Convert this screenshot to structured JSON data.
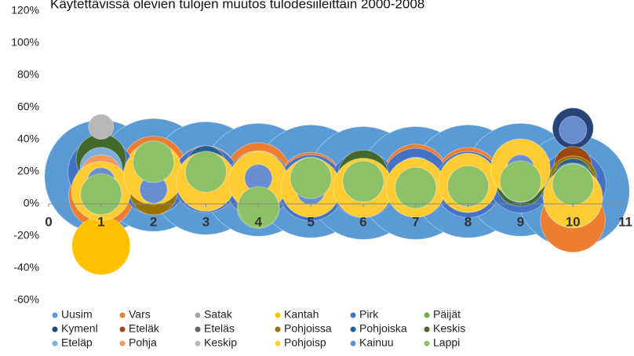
{
  "chart_data": {
    "type": "bubble",
    "title": "Käytettävissä olevien tulojen muutos tulodesiileittäin 2000-2008",
    "x": [
      1,
      2,
      3,
      4,
      5,
      6,
      7,
      8,
      9,
      10
    ],
    "xlim": [
      0,
      11
    ],
    "xticks": [
      0,
      1,
      2,
      3,
      4,
      5,
      6,
      7,
      8,
      9,
      10,
      11
    ],
    "ylim": [
      -60,
      120
    ],
    "yticks": [
      {
        "value": -60,
        "label": "-60%"
      },
      {
        "value": -40,
        "label": "-40%"
      },
      {
        "value": -20,
        "label": "-20%"
      },
      {
        "value": 0,
        "label": "0%"
      },
      {
        "value": 20,
        "label": "20%"
      },
      {
        "value": 40,
        "label": "40%"
      },
      {
        "value": 60,
        "label": "60%"
      },
      {
        "value": 80,
        "label": "80%"
      },
      {
        "value": 100,
        "label": "100%"
      },
      {
        "value": 120,
        "label": "120%"
      }
    ],
    "grid": false,
    "legend": "bottom",
    "series": [
      {
        "name": "Uusim",
        "color": "#5b9bd5",
        "values": [
          17,
          18,
          16,
          15,
          14,
          13,
          13,
          14,
          15,
          8
        ],
        "sizes": [
          1400,
          1400,
          1400,
          1400,
          1400,
          1400,
          1400,
          1400,
          1400,
          1400
        ]
      },
      {
        "name": "Vars",
        "color": "#ed7d31",
        "values": [
          5,
          22,
          16,
          18,
          12,
          12,
          17,
          15,
          18,
          -10
        ],
        "sizes": [
          460,
          460,
          460,
          460,
          460,
          460,
          460,
          460,
          460,
          460
        ]
      },
      {
        "name": "Satak",
        "color": "#a5a5a5",
        "values": [
          10,
          18,
          14,
          15,
          12,
          13,
          12,
          13,
          15,
          20
        ],
        "sizes": [
          225,
          225,
          225,
          225,
          225,
          225,
          225,
          225,
          225,
          225
        ]
      },
      {
        "name": "Kantah",
        "color": "#ffc000",
        "values": [
          -26,
          20,
          14,
          15,
          10,
          10,
          11,
          14,
          22,
          3
        ],
        "sizes": [
          370,
          370,
          370,
          370,
          370,
          370,
          370,
          370,
          370,
          370
        ]
      },
      {
        "name": "Pirk",
        "color": "#4472c4",
        "values": [
          20,
          14,
          15,
          12,
          10,
          12,
          14,
          12,
          15,
          12
        ],
        "sizes": [
          480,
          480,
          480,
          480,
          480,
          480,
          480,
          480,
          480,
          480
        ]
      },
      {
        "name": "Päijät",
        "color": "#70ad47",
        "values": [
          30,
          26,
          20,
          -2,
          16,
          15,
          10,
          12,
          14,
          11
        ],
        "sizes": [
          200,
          200,
          200,
          200,
          200,
          200,
          200,
          200,
          200,
          200
        ]
      },
      {
        "name": "Kymenl",
        "color": "#264478",
        "values": [
          25,
          18,
          22,
          14,
          12,
          14,
          12,
          13,
          14,
          47
        ],
        "sizes": [
          183,
          183,
          183,
          183,
          183,
          183,
          183,
          183,
          183,
          183
        ]
      },
      {
        "name": "Eteläk",
        "color": "#9e480e",
        "values": [
          12,
          10,
          14,
          14,
          10,
          16,
          10,
          14,
          16,
          24
        ],
        "sizes": [
          154,
          154,
          154,
          154,
          154,
          154,
          154,
          154,
          154,
          154
        ]
      },
      {
        "name": "Eteläs",
        "color": "#636363",
        "values": [
          14,
          16,
          18,
          14,
          12,
          18,
          12,
          14,
          14,
          18
        ],
        "sizes": [
          155,
          155,
          155,
          155,
          155,
          155,
          155,
          155,
          155,
          155
        ]
      },
      {
        "name": "Pohjoissa",
        "color": "#997300",
        "values": [
          16,
          8,
          10,
          14,
          12,
          12,
          10,
          12,
          16,
          15
        ],
        "sizes": [
          250,
          250,
          250,
          250,
          250,
          250,
          250,
          250,
          250,
          250
        ]
      },
      {
        "name": "Pohjoiska",
        "color": "#255e91",
        "values": [
          18,
          12,
          24,
          14,
          12,
          14,
          14,
          14,
          18,
          16
        ],
        "sizes": [
          167,
          167,
          167,
          167,
          167,
          167,
          167,
          167,
          167,
          167
        ]
      },
      {
        "name": "Keskis",
        "color": "#43682b",
        "values": [
          28,
          18,
          16,
          12,
          12,
          18,
          8,
          16,
          14,
          10
        ],
        "sizes": [
          272,
          272,
          272,
          272,
          272,
          272,
          272,
          272,
          272,
          272
        ]
      },
      {
        "name": "Eteläp",
        "color": "#7cafdd",
        "values": [
          22,
          16,
          16,
          14,
          12,
          14,
          16,
          14,
          14,
          12
        ],
        "sizes": [
          195,
          195,
          195,
          195,
          195,
          195,
          195,
          195,
          195,
          195
        ]
      },
      {
        "name": "Pohja",
        "color": "#f1975a",
        "values": [
          18,
          22,
          16,
          18,
          14,
          14,
          16,
          16,
          18,
          8
        ],
        "sizes": [
          178,
          178,
          178,
          178,
          178,
          178,
          178,
          178,
          178,
          178
        ]
      },
      {
        "name": "Keskip",
        "color": "#b7b7b7",
        "values": [
          48,
          18,
          14,
          14,
          12,
          14,
          16,
          16,
          16,
          14
        ],
        "sizes": [
          69,
          69,
          69,
          69,
          69,
          69,
          69,
          69,
          69,
          69
        ]
      },
      {
        "name": "Pohjoisp",
        "color": "#ffcd33",
        "values": [
          8,
          18,
          14,
          14,
          10,
          10,
          10,
          13,
          22,
          4
        ],
        "sizes": [
          385,
          385,
          385,
          385,
          385,
          385,
          385,
          385,
          385,
          385
        ]
      },
      {
        "name": "Kainuu",
        "color": "#698ed0",
        "values": [
          14,
          9,
          18,
          16,
          8,
          12,
          12,
          14,
          22,
          46
        ],
        "sizes": [
          83,
          83,
          83,
          83,
          83,
          83,
          83,
          83,
          83,
          83
        ]
      },
      {
        "name": "Lappi",
        "color": "#8cc168",
        "values": [
          6,
          26,
          20,
          -2,
          16,
          14,
          10,
          11,
          14,
          12
        ],
        "sizes": [
          184,
          184,
          184,
          184,
          184,
          184,
          184,
          184,
          184,
          184
        ]
      }
    ]
  }
}
